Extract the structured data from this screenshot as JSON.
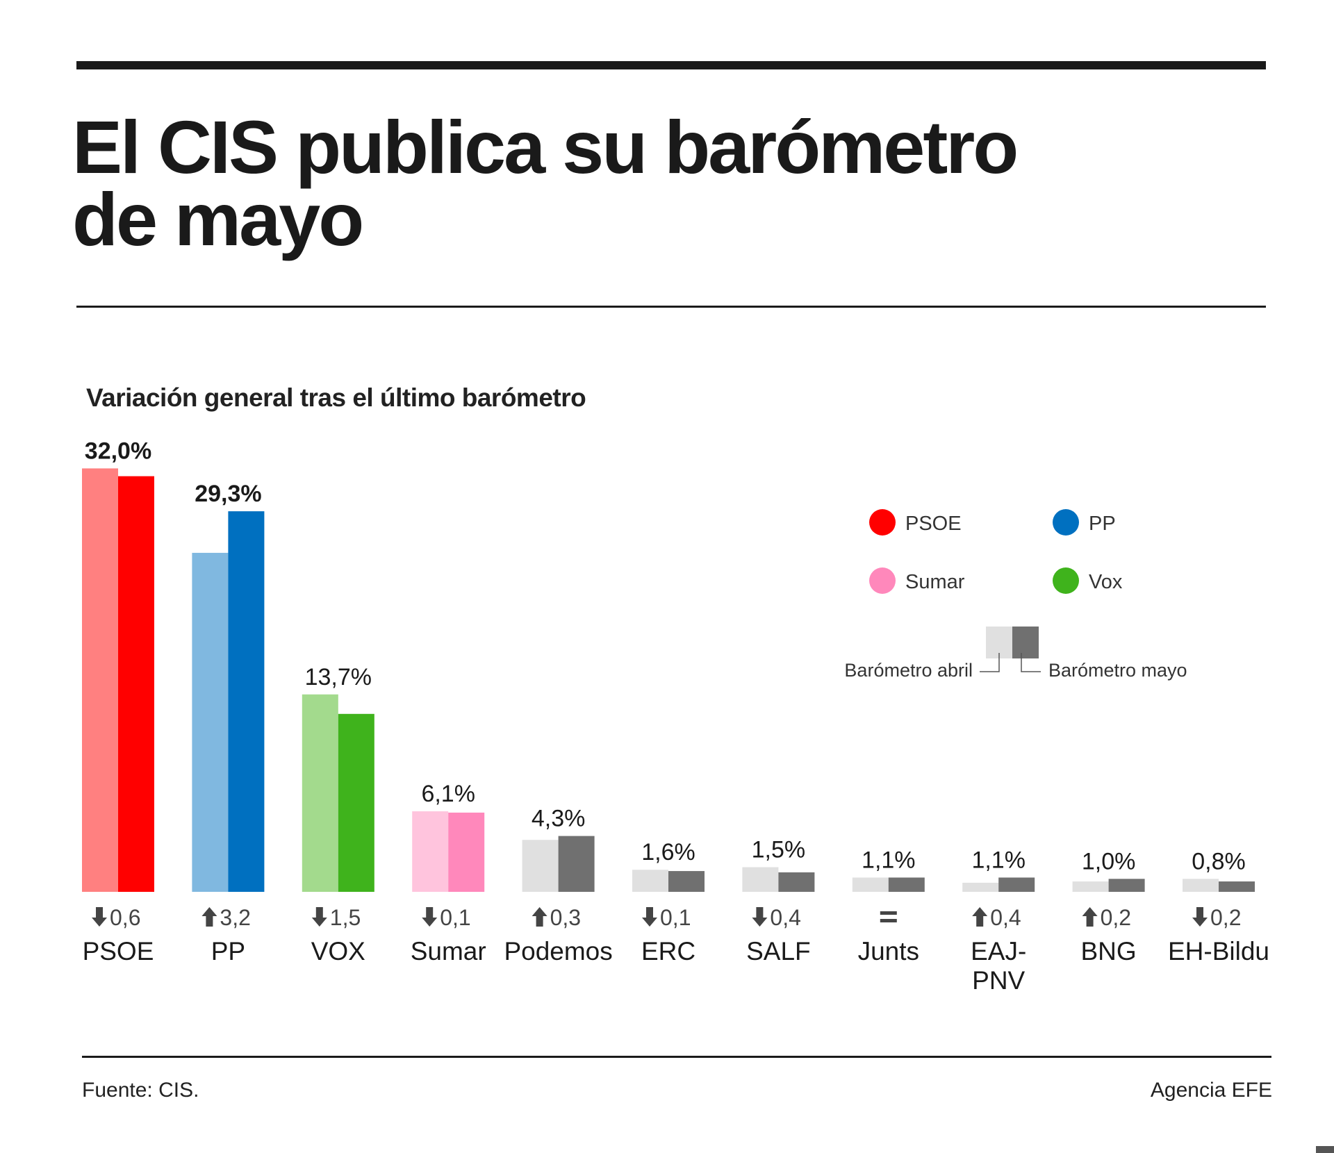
{
  "title_line1": "El CIS publica su barómetro",
  "title_line2": "de mayo",
  "footer": {
    "source": "Fuente: CIS.",
    "agency": "Agencia EFE"
  },
  "legend": {
    "parties": [
      {
        "name": "PSOE",
        "color": "#ff0000"
      },
      {
        "name": "PP",
        "color": "#0070c0"
      },
      {
        "name": "Sumar",
        "color": "#ff88bb"
      },
      {
        "name": "Vox",
        "color": "#3fb31c"
      }
    ],
    "april_label": "Barómetro abril",
    "may_label": "Barómetro mayo"
  },
  "chart_data": {
    "type": "bar",
    "title": "Variación general tras el último barómetro",
    "series": [
      {
        "name": "Barómetro abril"
      },
      {
        "name": "Barómetro mayo"
      }
    ],
    "categories": [
      "PSOE",
      "PP",
      "VOX",
      "Sumar",
      "Podemos",
      "ERC",
      "SALF",
      "Junts",
      "EAJ-PNV",
      "BNG",
      "EH-Bildu"
    ],
    "category_lines": [
      [
        "PSOE"
      ],
      [
        "PP"
      ],
      [
        "VOX"
      ],
      [
        "Sumar"
      ],
      [
        "Podemos"
      ],
      [
        "ERC"
      ],
      [
        "SALF"
      ],
      [
        "Junts"
      ],
      [
        "EAJ-",
        "PNV"
      ],
      [
        "BNG"
      ],
      [
        "EH-Bildu"
      ]
    ],
    "april": [
      32.6,
      26.1,
      15.2,
      6.2,
      4.0,
      1.7,
      1.9,
      1.1,
      0.7,
      0.8,
      1.0
    ],
    "may": [
      32.0,
      29.3,
      13.7,
      6.1,
      4.3,
      1.6,
      1.5,
      1.1,
      1.1,
      1.0,
      0.8
    ],
    "value_labels": [
      "32,0%",
      "29,3%",
      "13,7%",
      "6,1%",
      "4,3%",
      "1,6%",
      "1,5%",
      "1,1%",
      "1,1%",
      "1,0%",
      "0,8%"
    ],
    "label_bold": [
      true,
      true,
      false,
      false,
      false,
      false,
      false,
      false,
      false,
      false,
      false
    ],
    "change_direction": [
      "down",
      "up",
      "down",
      "down",
      "up",
      "down",
      "down",
      "equal",
      "up",
      "up",
      "down"
    ],
    "change_labels": [
      "0,6",
      "3,2",
      "1,5",
      "0,1",
      "0,3",
      "0,1",
      "0,4",
      "",
      "0,4",
      "0,2",
      "0,2"
    ],
    "colors_april": [
      "#ff8080",
      "#80b8e0",
      "#a3da8d",
      "#ffc4dd",
      "#e0e0e0",
      "#e0e0e0",
      "#e0e0e0",
      "#e0e0e0",
      "#e0e0e0",
      "#e0e0e0",
      "#e0e0e0"
    ],
    "colors_may": [
      "#ff0000",
      "#0070c0",
      "#3fb31c",
      "#ff88bb",
      "#707070",
      "#707070",
      "#707070",
      "#707070",
      "#707070",
      "#707070",
      "#707070"
    ]
  }
}
